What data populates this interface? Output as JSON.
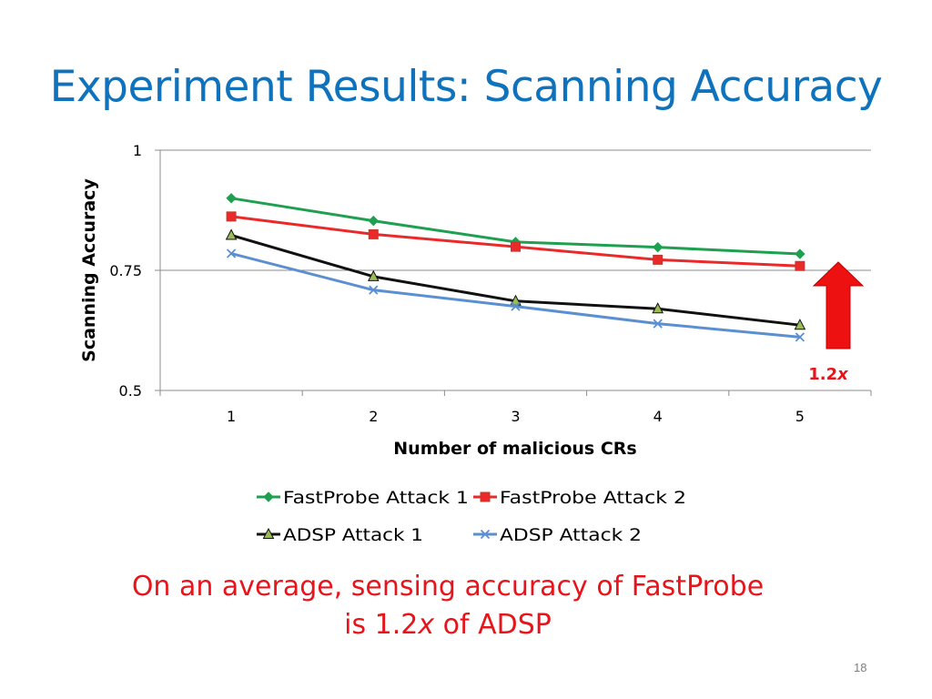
{
  "slide": {
    "title": "Experiment Results: Scanning Accuracy",
    "caption_line1": "On an average, sensing accuracy of FastProbe",
    "caption_line2_prefix": "is 1.2",
    "caption_line2_italic": "x",
    "caption_line2_suffix": " of ADSP",
    "page_number": "18"
  },
  "annotation": {
    "label_number": "1.2",
    "label_italic": "x",
    "arrow_color": "#ee1111",
    "text_color": "#e8141b"
  },
  "chart_data": {
    "type": "line",
    "x": [
      1,
      2,
      3,
      4,
      5
    ],
    "xlabel": "Number of malicious CRs",
    "ylabel": "Scanning Accuracy",
    "ylim": [
      0.5,
      1
    ],
    "yticks": [
      "0.5",
      "0.75",
      "1"
    ],
    "xticks": [
      "1",
      "2",
      "3",
      "4",
      "5"
    ],
    "grid": "horizontal",
    "legend": "bottom",
    "series": [
      {
        "name": "FastProbe Attack 1",
        "color": "#1fa050",
        "marker": "diamond",
        "values": [
          0.9,
          0.853,
          0.809,
          0.798,
          0.784
        ]
      },
      {
        "name": "FastProbe Attack 2",
        "color": "#ea2a2a",
        "marker": "square",
        "values": [
          0.862,
          0.825,
          0.799,
          0.772,
          0.759
        ]
      },
      {
        "name": "ADSP Attack 1",
        "color": "#111111",
        "marker": "triangle",
        "values": [
          0.823,
          0.737,
          0.686,
          0.67,
          0.636
        ]
      },
      {
        "name": "ADSP Attack 2",
        "color": "#5b8fd1",
        "marker": "cross",
        "values": [
          0.785,
          0.709,
          0.675,
          0.639,
          0.611
        ]
      }
    ]
  }
}
